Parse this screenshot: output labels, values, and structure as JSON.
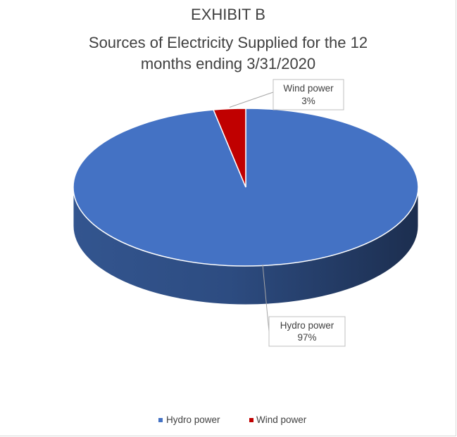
{
  "chart_data": {
    "type": "pie",
    "title_lines": [
      "EXHIBIT B",
      "Sources of Electricity Supplied for the 12",
      "months ending 3/31/2020"
    ],
    "categories": [
      "Hydro power",
      "Wind power"
    ],
    "values": [
      97,
      3
    ],
    "unit": "%",
    "colors": [
      "#4472c4",
      "#c00000"
    ],
    "data_labels": [
      {
        "name": "Hydro power",
        "value": "97%"
      },
      {
        "name": "Wind power",
        "value": "3%"
      }
    ],
    "legend_position": "bottom",
    "style": "3d"
  }
}
